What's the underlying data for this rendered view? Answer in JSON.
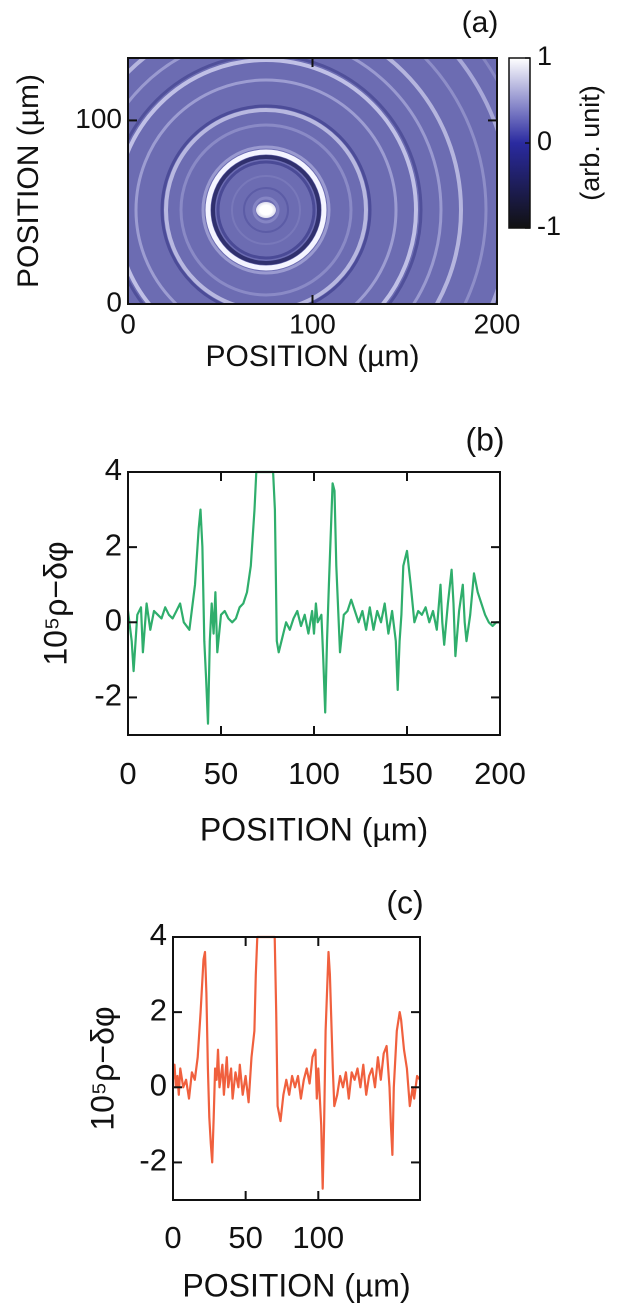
{
  "chart_data": [
    {
      "type": "heatmap",
      "title": "(a)",
      "xlabel": "POSITION (µm)",
      "ylabel": "POSITION (µm)",
      "xlim": [
        0,
        200
      ],
      "xticks": [
        0,
        100,
        200
      ],
      "ylim": [
        0,
        134
      ],
      "yticks": [
        0,
        100
      ],
      "colorbar": {
        "label": "(arb. unit)",
        "lim": [
          -1,
          1
        ],
        "ticks": [
          1,
          0,
          -1
        ]
      }
    },
    {
      "type": "line",
      "title": "(b)",
      "xlabel": "POSITION (µm)",
      "ylabel": "10⁵ρ−δφ",
      "color": "#2fae6c",
      "xlim": [
        0,
        200
      ],
      "xticks": [
        0,
        50,
        100,
        150,
        200
      ],
      "ylim": [
        -3,
        4
      ],
      "yticks": [
        4,
        2,
        0,
        -2
      ],
      "x": [
        0,
        2,
        3,
        5,
        7,
        8,
        10,
        12,
        14,
        16,
        18,
        20,
        22,
        24,
        26,
        28,
        30,
        33,
        36,
        38,
        39,
        40,
        41,
        42,
        43,
        44,
        45,
        46,
        47,
        48,
        50,
        52,
        54,
        56,
        58,
        60,
        62,
        64,
        66,
        68,
        69,
        78,
        79,
        80,
        81,
        83,
        85,
        87,
        89,
        91,
        93,
        95,
        97,
        99,
        100,
        101,
        102,
        104,
        105,
        106,
        107,
        108,
        110,
        111,
        112,
        114,
        116,
        118,
        120,
        122,
        124,
        126,
        128,
        130,
        132,
        134,
        136,
        138,
        140,
        142,
        144,
        145,
        146,
        147,
        148,
        150,
        152,
        154,
        156,
        158,
        160,
        162,
        164,
        166,
        168,
        169,
        170,
        172,
        174,
        175,
        176,
        178,
        180,
        181,
        182,
        184,
        186,
        188,
        190,
        192,
        194,
        196,
        198,
        200
      ],
      "values": [
        0.3,
        -0.5,
        -1.3,
        0.2,
        0.4,
        -0.8,
        0.5,
        -0.2,
        0.3,
        0.2,
        0.1,
        0.4,
        0.2,
        0.1,
        0.3,
        0.5,
        0.0,
        -0.2,
        1.0,
        2.5,
        3.0,
        2.0,
        -0.5,
        -1.5,
        -2.7,
        -0.5,
        0.5,
        -0.3,
        0.8,
        -0.8,
        0.2,
        0.3,
        0.1,
        0.0,
        0.1,
        0.4,
        0.5,
        0.8,
        1.5,
        3.0,
        4,
        4,
        3.0,
        -0.5,
        -0.8,
        -0.4,
        0.0,
        -0.2,
        0.1,
        0.3,
        -0.1,
        0.2,
        -0.3,
        0.3,
        -0.3,
        0.5,
        0.0,
        0.2,
        -1.0,
        -2.4,
        -0.5,
        1.0,
        3.7,
        3.5,
        1.5,
        -0.8,
        0.2,
        0.3,
        0.6,
        0.3,
        0.0,
        0.3,
        -0.2,
        0.4,
        -0.2,
        0.3,
        0.0,
        0.5,
        -0.3,
        0.3,
        -0.5,
        -1.8,
        -0.5,
        0.2,
        1.5,
        1.9,
        1.0,
        0.0,
        0.3,
        0.2,
        0.4,
        0.0,
        0.3,
        -0.2,
        1.0,
        0.0,
        -0.6,
        0.5,
        1.4,
        0.5,
        -0.9,
        0.3,
        1.0,
        0.0,
        -0.5,
        0.2,
        1.3,
        0.8,
        0.5,
        0.2,
        0.0,
        -0.1,
        0.0,
        0.0
      ]
    },
    {
      "type": "line",
      "title": "(c)",
      "xlabel": "POSITION (µm)",
      "ylabel": "10⁵ρ−δφ",
      "color": "#f0603e",
      "xlim": [
        0,
        170
      ],
      "xticks": [
        0,
        50,
        100
      ],
      "ylim": [
        -3,
        4
      ],
      "yticks": [
        4,
        2,
        0,
        -2
      ],
      "x": [
        0,
        1,
        2,
        3,
        4,
        5,
        7,
        9,
        11,
        13,
        15,
        17,
        19,
        21,
        22,
        23,
        24,
        25,
        26,
        27,
        28,
        29,
        30,
        31,
        32,
        34,
        35,
        37,
        38,
        40,
        41,
        43,
        45,
        46,
        48,
        50,
        52,
        54,
        56,
        57,
        58,
        70,
        71,
        72,
        74,
        76,
        78,
        80,
        82,
        84,
        86,
        88,
        90,
        92,
        94,
        96,
        98,
        99,
        100,
        102,
        103,
        104,
        105,
        107,
        108,
        110,
        111,
        113,
        115,
        117,
        119,
        121,
        123,
        125,
        127,
        129,
        131,
        133,
        135,
        137,
        139,
        141,
        143,
        145,
        147,
        149,
        150,
        151,
        152,
        154,
        156,
        157,
        159,
        161,
        163,
        165,
        166,
        168,
        170
      ],
      "values": [
        0.2,
        0.6,
        0.0,
        0.3,
        -0.2,
        0.5,
        0.0,
        0.2,
        -0.3,
        0.4,
        0.2,
        0.8,
        2.0,
        3.4,
        3.6,
        2.5,
        0.5,
        -0.8,
        -1.5,
        -2.0,
        -0.8,
        0.5,
        0.2,
        1.0,
        0.0,
        0.6,
        -0.2,
        0.8,
        0.0,
        0.5,
        -0.3,
        0.4,
        0.0,
        0.6,
        -0.2,
        0.3,
        -0.4,
        0.8,
        1.5,
        3.0,
        4,
        4,
        2.0,
        -0.5,
        -0.9,
        -0.2,
        0.2,
        -0.2,
        0.3,
        0.0,
        0.3,
        -0.3,
        0.2,
        0.5,
        0.1,
        0.8,
        1.0,
        -0.3,
        0.5,
        -1.0,
        -2.7,
        -1.0,
        1.5,
        3.6,
        3.0,
        0.5,
        -0.5,
        -0.2,
        0.3,
        0.0,
        0.4,
        -0.3,
        0.4,
        0.2,
        0.5,
        0.0,
        0.6,
        -0.2,
        0.3,
        0.5,
        0.0,
        0.8,
        0.2,
        0.9,
        1.1,
        0.0,
        -1.0,
        -1.8,
        0.0,
        1.5,
        2.0,
        1.8,
        1.0,
        0.5,
        -0.5,
        0.0,
        -0.3,
        0.3,
        0.2
      ]
    }
  ]
}
